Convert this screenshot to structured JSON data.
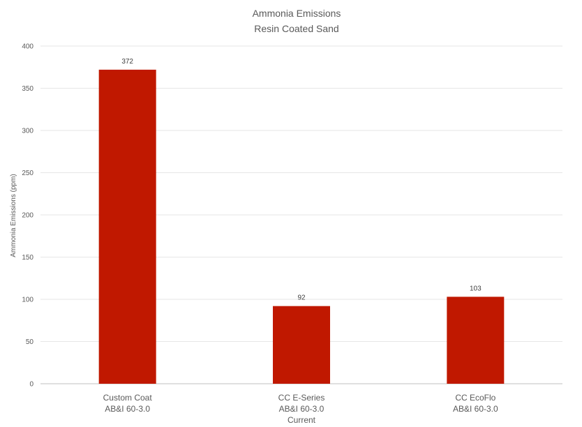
{
  "chart_data": {
    "type": "bar",
    "title": "Ammonia Emissions",
    "subtitle": "Resin Coated Sand",
    "xlabel": "",
    "ylabel": "Ammonia Emissions (ppm)",
    "ylim": [
      0,
      400
    ],
    "yticks": [
      0,
      50,
      100,
      150,
      200,
      250,
      300,
      350,
      400
    ],
    "grid": true,
    "legend": "none",
    "categories": [
      [
        "Custom Coat",
        "AB&I 60-3.0"
      ],
      [
        "CC E-Series",
        "AB&I 60-3.0",
        "Current"
      ],
      [
        "CC EcoFlo",
        "AB&I 60-3.0"
      ]
    ],
    "values": [
      372,
      92,
      103
    ],
    "data_labels": [
      "372",
      "92",
      "103"
    ],
    "bar_color": "#c01800",
    "grid_color": "#e6e6e6",
    "axis_color": "#bfbfbf"
  }
}
